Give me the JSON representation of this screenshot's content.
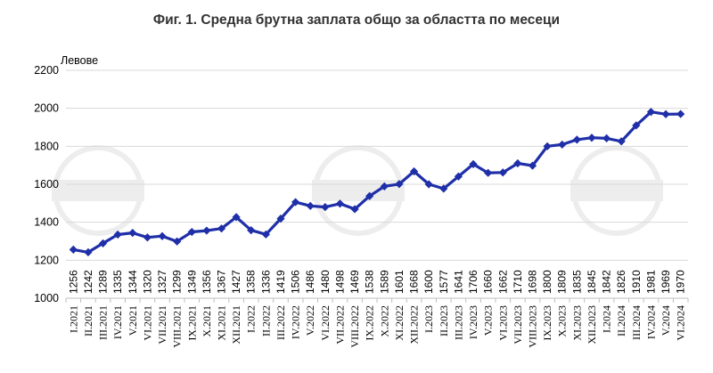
{
  "chart_data": {
    "type": "line",
    "title": "Фиг. 1. Средна брутна заплата общо за областта по месеци",
    "ylabel": "Левове",
    "xlabel": "",
    "ylim": [
      1000,
      2200
    ],
    "yticks": [
      1000,
      1200,
      1400,
      1600,
      1800,
      2000,
      2200
    ],
    "grid": true,
    "legend": false,
    "line_color": "#1f2fa8",
    "marker": "diamond",
    "categories": [
      "I.2021",
      "II.2021",
      "III.2021",
      "IV.2021",
      "V.2021",
      "VI.2021",
      "VII.2021",
      "VIII.2021",
      "IX.2021",
      "X.2021",
      "XI.2021",
      "XII.2021",
      "I.2022",
      "II.2022",
      "III.2022",
      "IV.2022",
      "V.2022",
      "VI.2022",
      "VII.2022",
      "VIII.2022",
      "IX.2022",
      "X.2022",
      "XI.2022",
      "XII.2022",
      "I.2023",
      "II.2023",
      "III.2023",
      "IV.2023",
      "V.2023",
      "VI.2023",
      "VII.2023",
      "VIII.2023",
      "IX.2023",
      "X.2023",
      "XI.2023",
      "XII.2023",
      "I.2024",
      "II.2024",
      "III.2024",
      "IV.2024",
      "V.2024",
      "VI.2024"
    ],
    "series": [
      {
        "values": [
          1256,
          1242,
          1289,
          1335,
          1344,
          1320,
          1327,
          1299,
          1349,
          1356,
          1367,
          1427,
          1358,
          1336,
          1419,
          1506,
          1486,
          1480,
          1498,
          1469,
          1538,
          1589,
          1601,
          1668,
          1600,
          1577,
          1641,
          1706,
          1660,
          1662,
          1710,
          1698,
          1800,
          1809,
          1835,
          1845,
          1842,
          1826,
          1910,
          1981,
          1969,
          1970
        ]
      }
    ]
  }
}
